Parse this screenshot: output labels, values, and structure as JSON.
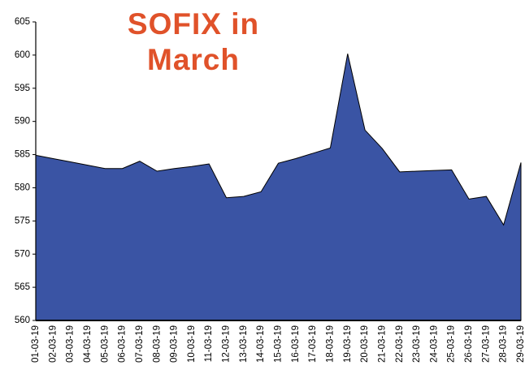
{
  "chart_data": {
    "type": "area",
    "title": "SOFIX in March",
    "categories": [
      "01-03-19",
      "02-03-19",
      "03-03-19",
      "04-03-19",
      "05-03-19",
      "06-03-19",
      "07-03-19",
      "08-03-19",
      "09-03-19",
      "10-03-19",
      "11-03-19",
      "12-03-19",
      "13-03-19",
      "14-03-19",
      "15-03-19",
      "16-03-19",
      "17-03-19",
      "18-03-19",
      "19-03-19",
      "20-03-19",
      "21-03-19",
      "22-03-19",
      "23-03-19",
      "24-03-19",
      "25-03-19",
      "26-03-19",
      "27-03-19",
      "28-03-19",
      "29-03-19"
    ],
    "values": [
      584.9,
      584.4,
      583.9,
      583.4,
      582.9,
      582.9,
      584.0,
      582.5,
      582.9,
      583.2,
      583.6,
      578.5,
      578.7,
      579.4,
      583.7,
      584.4,
      585.2,
      586.0,
      600.2,
      588.7,
      585.9,
      582.4,
      582.5,
      582.6,
      582.7,
      578.3,
      578.7,
      574.4,
      583.8
    ],
    "color": "#3a54a4",
    "ylim": [
      560,
      605
    ],
    "yticks": [
      560,
      565,
      570,
      575,
      580,
      585,
      590,
      595,
      600,
      605
    ]
  }
}
